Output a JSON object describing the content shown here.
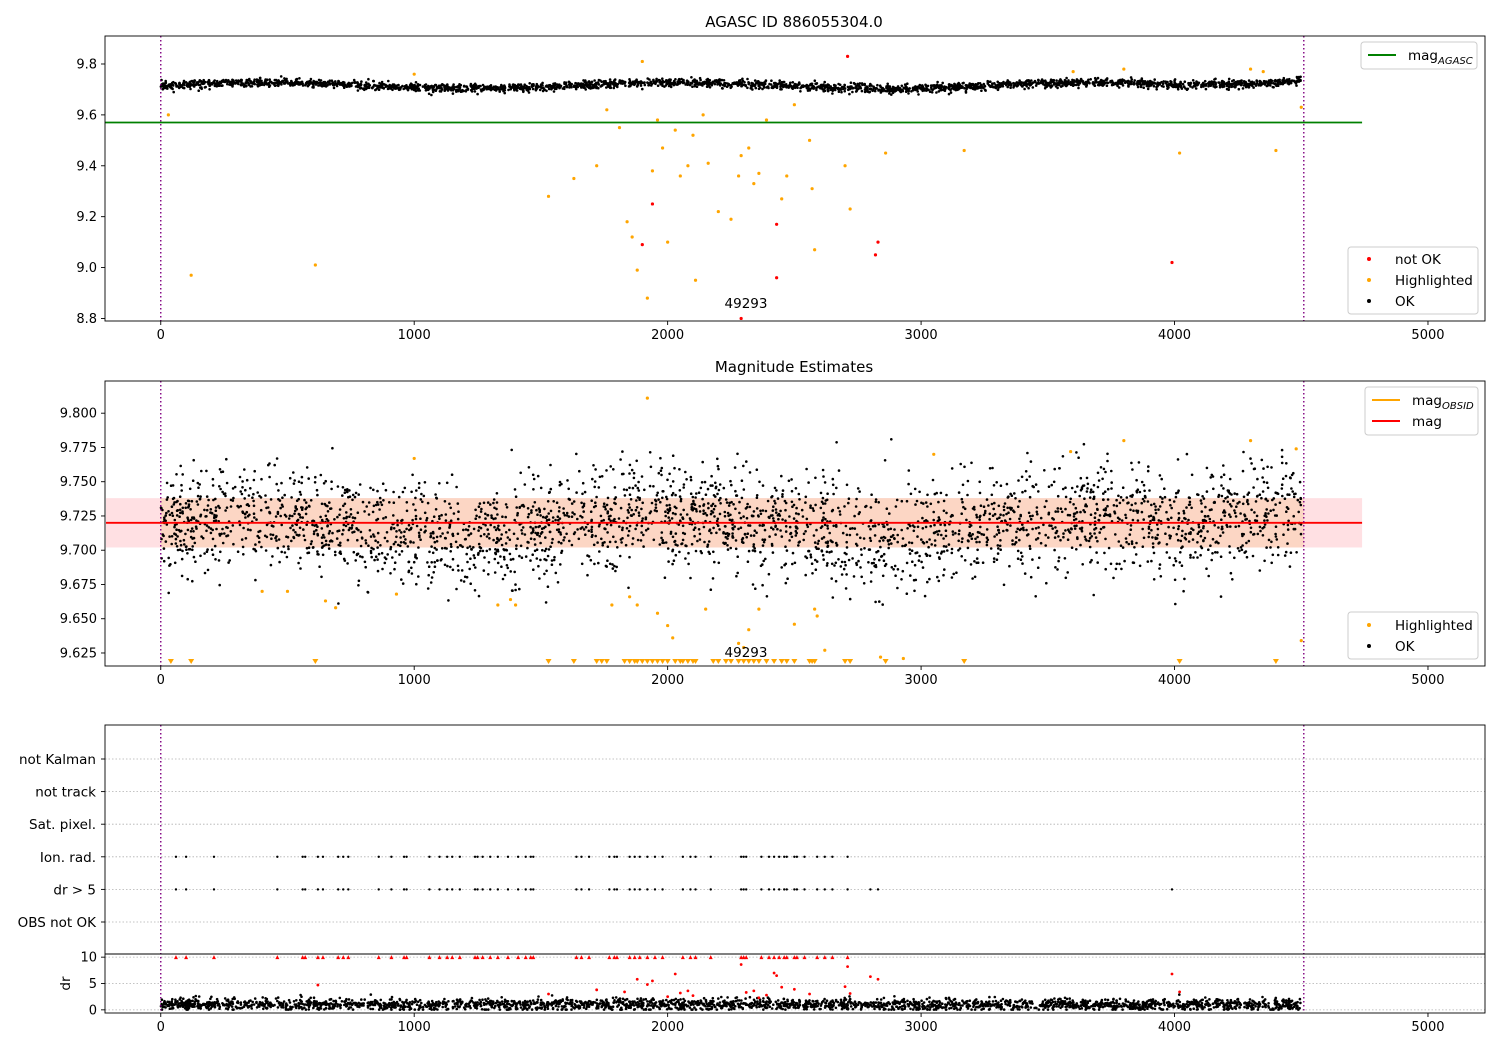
{
  "chart_data": [
    {
      "type": "scatter",
      "title": "AGASC ID 886055304.0",
      "xlim": [
        -220,
        5225
      ],
      "ylim": [
        8.79,
        9.91
      ],
      "xticks": [
        0,
        1000,
        2000,
        3000,
        4000,
        5000
      ],
      "xtick_labels": [
        "0",
        "1000",
        "2000",
        "3000",
        "4000",
        "5000"
      ],
      "yticks": [
        8.8,
        9.0,
        9.2,
        9.4,
        9.6,
        9.8
      ],
      "ytick_labels": [
        "8.8",
        "9.0",
        "9.2",
        "9.4",
        "9.6",
        "9.8"
      ],
      "vlines": [
        0,
        4510
      ],
      "hline": {
        "y": 9.57,
        "x_end": 4740,
        "color": "#008000"
      },
      "annotation": {
        "text": "49293",
        "x": 2250,
        "y": 8.83
      },
      "legend_upper": [
        {
          "label": "mag",
          "sub": "AGASC",
          "color": "#008000"
        }
      ],
      "legend_lower": [
        {
          "label": "not OK",
          "color": "#ff0000"
        },
        {
          "label": "Highlighted",
          "color": "#ffa500"
        },
        {
          "label": "OK",
          "color": "#000000"
        }
      ],
      "ok_band": {
        "center": 9.715,
        "amp": 0.012,
        "noise": 0.008,
        "end_rise": 0.03
      },
      "highlighted_points": [
        [
          30,
          9.6
        ],
        [
          120,
          8.97
        ],
        [
          610,
          9.01
        ],
        [
          1530,
          9.28
        ],
        [
          1630,
          9.35
        ],
        [
          1720,
          9.4
        ],
        [
          1760,
          9.62
        ],
        [
          1810,
          9.55
        ],
        [
          1840,
          9.18
        ],
        [
          1860,
          9.12
        ],
        [
          1880,
          8.99
        ],
        [
          1920,
          8.88
        ],
        [
          1940,
          9.38
        ],
        [
          1960,
          9.58
        ],
        [
          1980,
          9.47
        ],
        [
          2000,
          9.1
        ],
        [
          2030,
          9.54
        ],
        [
          2050,
          9.36
        ],
        [
          2080,
          9.4
        ],
        [
          2100,
          9.52
        ],
        [
          2110,
          8.95
        ],
        [
          2140,
          9.6
        ],
        [
          2160,
          9.41
        ],
        [
          2200,
          9.22
        ],
        [
          2250,
          9.19
        ],
        [
          2280,
          9.36
        ],
        [
          2290,
          9.44
        ],
        [
          2320,
          9.47
        ],
        [
          2340,
          9.33
        ],
        [
          2360,
          9.37
        ],
        [
          2390,
          9.58
        ],
        [
          2450,
          9.27
        ],
        [
          2470,
          9.36
        ],
        [
          2500,
          9.64
        ],
        [
          2560,
          9.5
        ],
        [
          2570,
          9.31
        ],
        [
          2580,
          9.07
        ],
        [
          2700,
          9.4
        ],
        [
          2720,
          9.23
        ],
        [
          2860,
          9.45
        ],
        [
          3170,
          9.46
        ],
        [
          4020,
          9.45
        ],
        [
          4400,
          9.46
        ],
        [
          4500,
          9.63
        ],
        [
          1900,
          9.81
        ],
        [
          1000,
          9.76
        ],
        [
          3600,
          9.77
        ],
        [
          3800,
          9.78
        ],
        [
          4300,
          9.78
        ],
        [
          4350,
          9.77
        ]
      ],
      "notok_points": [
        [
          1900,
          9.09
        ],
        [
          1940,
          9.25
        ],
        [
          2290,
          8.8
        ],
        [
          2430,
          9.17
        ],
        [
          2430,
          8.96
        ],
        [
          2710,
          9.83
        ],
        [
          2820,
          9.05
        ],
        [
          2830,
          9.1
        ],
        [
          3990,
          9.02
        ]
      ]
    },
    {
      "type": "scatter",
      "title": "Magnitude Estimates",
      "xlim": [
        -220,
        5225
      ],
      "ylim": [
        9.6155,
        9.8235
      ],
      "xticks": [
        0,
        1000,
        2000,
        3000,
        4000,
        5000
      ],
      "xtick_labels": [
        "0",
        "1000",
        "2000",
        "3000",
        "4000",
        "5000"
      ],
      "yticks": [
        9.625,
        9.65,
        9.675,
        9.7,
        9.725,
        9.75,
        9.775,
        9.8
      ],
      "ytick_labels": [
        "9.625",
        "9.650",
        "9.675",
        "9.700",
        "9.725",
        "9.750",
        "9.775",
        "9.800"
      ],
      "vlines": [
        0,
        4510
      ],
      "mag_line": {
        "y": 9.72,
        "x_end": 4740,
        "color": "#ff0000"
      },
      "band_outer": {
        "y0": 9.702,
        "y1": 9.738,
        "x_end": 4740,
        "color": "#ffe0e3"
      },
      "band_inner": {
        "y0": 9.702,
        "y1": 9.738,
        "x_end": 4510,
        "color": "#fcd6c4"
      },
      "annotation": {
        "text": "49293",
        "x": 2250,
        "y": 9.6205
      },
      "legend_upper": [
        {
          "label": "mag",
          "sub": "OBSID",
          "color": "#ffa500"
        },
        {
          "label": "mag",
          "sub": "",
          "color": "#ff0000"
        }
      ],
      "legend_lower": [
        {
          "label": "Highlighted",
          "color": "#ffa500"
        },
        {
          "label": "OK",
          "color": "#000000"
        }
      ],
      "ok_band": {
        "center": 9.717,
        "amp": 0.008,
        "noise": 0.019,
        "end_rise": 0.025
      },
      "highlighted_points": [
        [
          1920,
          9.811
        ],
        [
          1000,
          9.767
        ],
        [
          3050,
          9.77
        ],
        [
          3590,
          9.772
        ],
        [
          3800,
          9.78
        ],
        [
          4300,
          9.78
        ],
        [
          4480,
          9.774
        ],
        [
          1780,
          9.66
        ],
        [
          1850,
          9.666
        ],
        [
          1880,
          9.66
        ],
        [
          1960,
          9.654
        ],
        [
          2000,
          9.645
        ],
        [
          2020,
          9.636
        ],
        [
          2150,
          9.657
        ],
        [
          2280,
          9.632
        ],
        [
          2300,
          9.629
        ],
        [
          2320,
          9.642
        ],
        [
          2360,
          9.657
        ],
        [
          2500,
          9.646
        ],
        [
          2580,
          9.657
        ],
        [
          2590,
          9.652
        ],
        [
          2620,
          9.627
        ],
        [
          2840,
          9.622
        ],
        [
          2930,
          9.621
        ],
        [
          4500,
          9.634
        ],
        [
          1330,
          9.66
        ],
        [
          1380,
          9.664
        ],
        [
          1400,
          9.66
        ],
        [
          650,
          9.663
        ],
        [
          690,
          9.658
        ],
        [
          930,
          9.668
        ],
        [
          400,
          9.67
        ],
        [
          500,
          9.67
        ]
      ],
      "low_triangles": [
        40,
        120,
        610,
        1530,
        1630,
        1720,
        1740,
        1760,
        1830,
        1850,
        1870,
        1880,
        1900,
        1920,
        1940,
        1960,
        1980,
        2000,
        2030,
        2050,
        2060,
        2080,
        2100,
        2110,
        2180,
        2200,
        2230,
        2250,
        2280,
        2300,
        2320,
        2340,
        2360,
        2390,
        2420,
        2450,
        2470,
        2500,
        2560,
        2570,
        2580,
        2700,
        2720,
        2860,
        3170,
        4020,
        4400
      ]
    },
    {
      "type": "scatter",
      "title": "",
      "xlim": [
        -220,
        5225
      ],
      "xticks": [
        0,
        1000,
        2000,
        3000,
        4000,
        5000
      ],
      "xtick_labels": [
        "0",
        "1000",
        "2000",
        "3000",
        "4000",
        "5000"
      ],
      "vlines": [
        0,
        4510
      ],
      "flag_rows": [
        "not Kalman",
        "not track",
        "Sat. pixel.",
        "Ion. rad.",
        "dr > 5",
        "OBS not OK"
      ],
      "flag_points": {
        "Ion. rad.": [
          60,
          100,
          210,
          460,
          560,
          570,
          620,
          640,
          700,
          720,
          740,
          860,
          910,
          960,
          970,
          1060,
          1100,
          1130,
          1150,
          1180,
          1240,
          1250,
          1270,
          1300,
          1330,
          1370,
          1410,
          1440,
          1460,
          1470,
          1640,
          1660,
          1690,
          1770,
          1790,
          1800,
          1850,
          1870,
          1890,
          1920,
          1950,
          1980,
          2060,
          2090,
          2110,
          2170,
          2290,
          2300,
          2310,
          2370,
          2400,
          2420,
          2440,
          2460,
          2470,
          2500,
          2510,
          2540,
          2590,
          2620,
          2650,
          2710
        ],
        "dr > 5": [
          60,
          100,
          210,
          460,
          560,
          570,
          620,
          640,
          700,
          720,
          740,
          860,
          910,
          960,
          970,
          1060,
          1100,
          1130,
          1150,
          1180,
          1240,
          1250,
          1270,
          1300,
          1330,
          1370,
          1410,
          1440,
          1460,
          1470,
          1640,
          1660,
          1690,
          1770,
          1790,
          1800,
          1850,
          1870,
          1890,
          1920,
          1950,
          1980,
          2060,
          2090,
          2110,
          2170,
          2290,
          2300,
          2310,
          2370,
          2400,
          2420,
          2440,
          2460,
          2470,
          2500,
          2510,
          2540,
          2590,
          2620,
          2650,
          2710,
          2800,
          2830,
          3990
        ],
        "OBS not OK": []
      },
      "dr_axis": {
        "ylabel": "dr",
        "ylim": [
          -0.6,
          10.6
        ],
        "yticks": [
          0,
          5,
          10
        ],
        "ytick_labels": [
          "0",
          "5",
          "10"
        ],
        "ok_level": 1.0,
        "capped_triangles": [
          60,
          100,
          210,
          460,
          560,
          570,
          620,
          640,
          700,
          720,
          740,
          860,
          910,
          960,
          970,
          1060,
          1100,
          1130,
          1150,
          1180,
          1240,
          1250,
          1270,
          1300,
          1330,
          1370,
          1410,
          1440,
          1460,
          1470,
          1640,
          1660,
          1690,
          1770,
          1790,
          1800,
          1850,
          1870,
          1890,
          1920,
          1950,
          1980,
          2060,
          2090,
          2110,
          2170,
          2290,
          2300,
          2310,
          2370,
          2400,
          2420,
          2440,
          2460,
          2470,
          2500,
          2510,
          2540,
          2590,
          2620,
          2650,
          2710
        ],
        "red_points": [
          [
            620,
            4.7
          ],
          [
            1530,
            3.0
          ],
          [
            1720,
            3.8
          ],
          [
            1830,
            3.4
          ],
          [
            1880,
            5.8
          ],
          [
            1920,
            4.8
          ],
          [
            1940,
            5.5
          ],
          [
            2000,
            2.5
          ],
          [
            2030,
            6.8
          ],
          [
            2050,
            3.2
          ],
          [
            2080,
            3.6
          ],
          [
            2100,
            2.7
          ],
          [
            2290,
            8.6
          ],
          [
            2310,
            3.3
          ],
          [
            2340,
            3.6
          ],
          [
            2360,
            2.3
          ],
          [
            2390,
            2.8
          ],
          [
            2420,
            7.0
          ],
          [
            2430,
            6.5
          ],
          [
            2450,
            4.3
          ],
          [
            2500,
            3.9
          ],
          [
            2560,
            3.0
          ],
          [
            2700,
            4.4
          ],
          [
            2720,
            3.1
          ],
          [
            2710,
            8.2
          ],
          [
            2800,
            6.3
          ],
          [
            2830,
            5.8
          ],
          [
            3990,
            6.8
          ],
          [
            4020,
            3.4
          ]
        ]
      }
    }
  ]
}
